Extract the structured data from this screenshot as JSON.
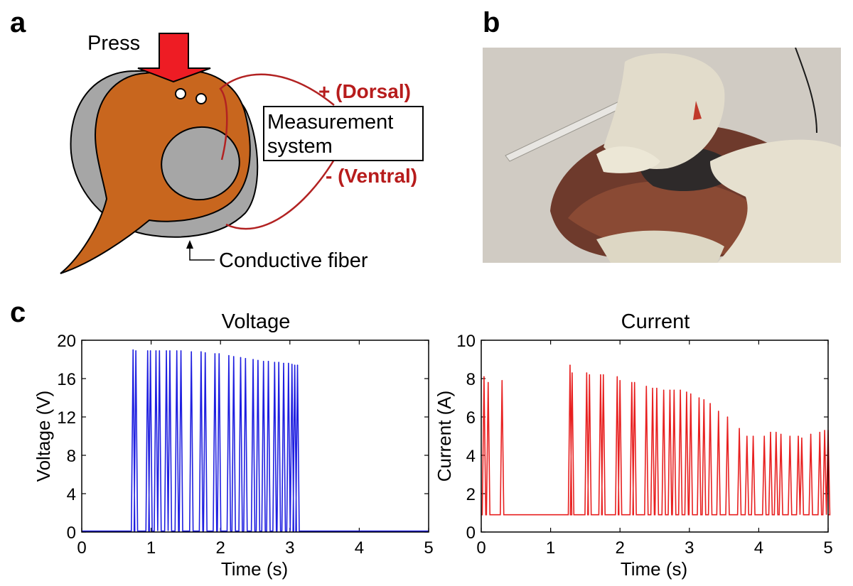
{
  "panels": {
    "a": "a",
    "b": "b",
    "c": "c"
  },
  "diagram": {
    "press": "Press",
    "dorsal": "+ (Dorsal)",
    "ventral": "- (Ventral)",
    "measurement_line1": "Measurement",
    "measurement_line2": "system",
    "fiber": "Conductive fiber",
    "colors": {
      "heart": "#c8661e",
      "gray": "#a6a6a6",
      "arrow": "#ee1c24",
      "wire": "#b22222",
      "label": "#b71c1c"
    }
  },
  "chart_data": [
    {
      "type": "line",
      "title": "Voltage",
      "xlabel": "Time (s)",
      "ylabel": "Voltage (V)",
      "xlim": [
        0,
        5
      ],
      "ylim": [
        0,
        20
      ],
      "xticks": [
        0,
        1,
        2,
        3,
        4,
        5
      ],
      "yticks": [
        0,
        4,
        8,
        12,
        16,
        20
      ],
      "color": "#1f1fe0",
      "baseline": 0.1,
      "series": [
        {
          "values": [
            [
              0.74,
              19.0
            ],
            [
              0.78,
              18.9
            ],
            [
              0.95,
              18.9
            ],
            [
              0.99,
              18.9
            ],
            [
              1.07,
              18.9
            ],
            [
              1.12,
              18.9
            ],
            [
              1.22,
              18.9
            ],
            [
              1.27,
              18.9
            ],
            [
              1.37,
              18.9
            ],
            [
              1.43,
              18.9
            ],
            [
              1.58,
              18.8
            ],
            [
              1.72,
              18.8
            ],
            [
              1.78,
              18.7
            ],
            [
              1.92,
              18.6
            ],
            [
              1.98,
              18.6
            ],
            [
              2.12,
              18.4
            ],
            [
              2.19,
              18.3
            ],
            [
              2.29,
              18.2
            ],
            [
              2.36,
              18.1
            ],
            [
              2.47,
              18.0
            ],
            [
              2.54,
              17.9
            ],
            [
              2.62,
              17.8
            ],
            [
              2.69,
              17.8
            ],
            [
              2.78,
              17.7
            ],
            [
              2.84,
              17.7
            ],
            [
              2.91,
              17.6
            ],
            [
              2.98,
              17.6
            ],
            [
              3.03,
              17.5
            ],
            [
              3.07,
              17.4
            ],
            [
              3.11,
              17.4
            ]
          ]
        }
      ]
    },
    {
      "type": "line",
      "title": "Current",
      "xlabel": "Time (s)",
      "ylabel": "Current (A)",
      "xlim": [
        0,
        5
      ],
      "ylim": [
        0,
        10
      ],
      "xticks": [
        0,
        1,
        2,
        3,
        4,
        5
      ],
      "yticks": [
        0,
        2,
        4,
        6,
        8,
        10
      ],
      "color": "#e82020",
      "baseline": 0.9,
      "series": [
        {
          "values": [
            [
              0.04,
              8.1
            ],
            [
              0.1,
              7.8
            ],
            [
              0.3,
              7.9
            ],
            [
              1.28,
              8.7
            ],
            [
              1.31,
              8.3
            ],
            [
              1.52,
              8.3
            ],
            [
              1.56,
              8.2
            ],
            [
              1.72,
              8.2
            ],
            [
              1.76,
              8.2
            ],
            [
              1.96,
              8.1
            ],
            [
              2.0,
              7.9
            ],
            [
              2.17,
              7.8
            ],
            [
              2.21,
              7.8
            ],
            [
              2.38,
              7.6
            ],
            [
              2.47,
              7.5
            ],
            [
              2.53,
              7.5
            ],
            [
              2.63,
              7.4
            ],
            [
              2.72,
              7.4
            ],
            [
              2.78,
              7.4
            ],
            [
              2.87,
              7.4
            ],
            [
              2.96,
              7.3
            ],
            [
              3.02,
              7.2
            ],
            [
              3.14,
              7.0
            ],
            [
              3.21,
              6.9
            ],
            [
              3.3,
              6.7
            ],
            [
              3.42,
              6.3
            ],
            [
              3.55,
              6.0
            ],
            [
              3.72,
              5.4
            ],
            [
              3.83,
              5.0
            ],
            [
              3.92,
              5.0
            ],
            [
              4.08,
              5.0
            ],
            [
              4.17,
              5.2
            ],
            [
              4.25,
              5.2
            ],
            [
              4.32,
              5.1
            ],
            [
              4.45,
              5.0
            ],
            [
              4.57,
              5.0
            ],
            [
              4.62,
              4.9
            ],
            [
              4.75,
              5.1
            ],
            [
              4.88,
              5.2
            ],
            [
              4.95,
              5.3
            ],
            [
              5.0,
              5.3
            ]
          ]
        }
      ]
    }
  ]
}
